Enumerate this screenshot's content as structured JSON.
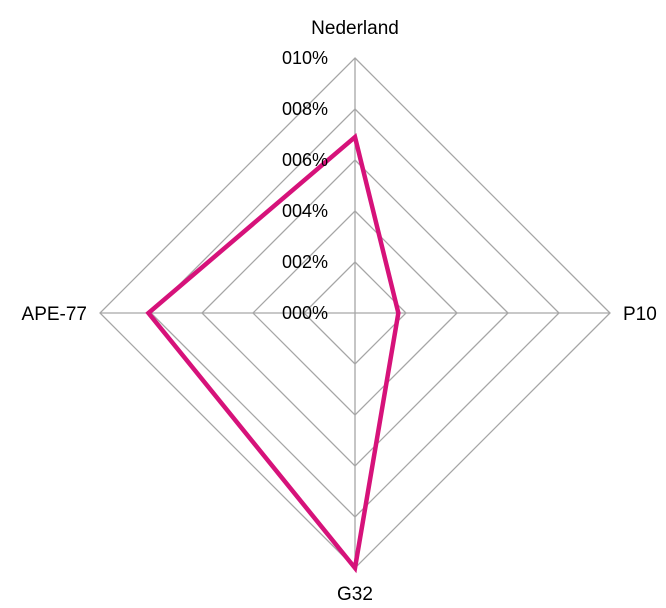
{
  "chart_data": {
    "type": "radar",
    "categories": [
      "Nederland",
      "P10",
      "G32",
      "APE-77"
    ],
    "series": [
      {
        "values": [
          0.069,
          0.017,
          0.1,
          0.081
        ],
        "color": "#d6127a"
      }
    ],
    "rlim": [
      0,
      0.1
    ],
    "tick_values": [
      0,
      0.02,
      0.04,
      0.06,
      0.08,
      0.1
    ],
    "tick_labels": [
      "000%",
      "002%",
      "004%",
      "006%",
      "008%",
      "010%"
    ],
    "grid": true,
    "grid_color": "#a6a6a6",
    "legend": "none"
  }
}
